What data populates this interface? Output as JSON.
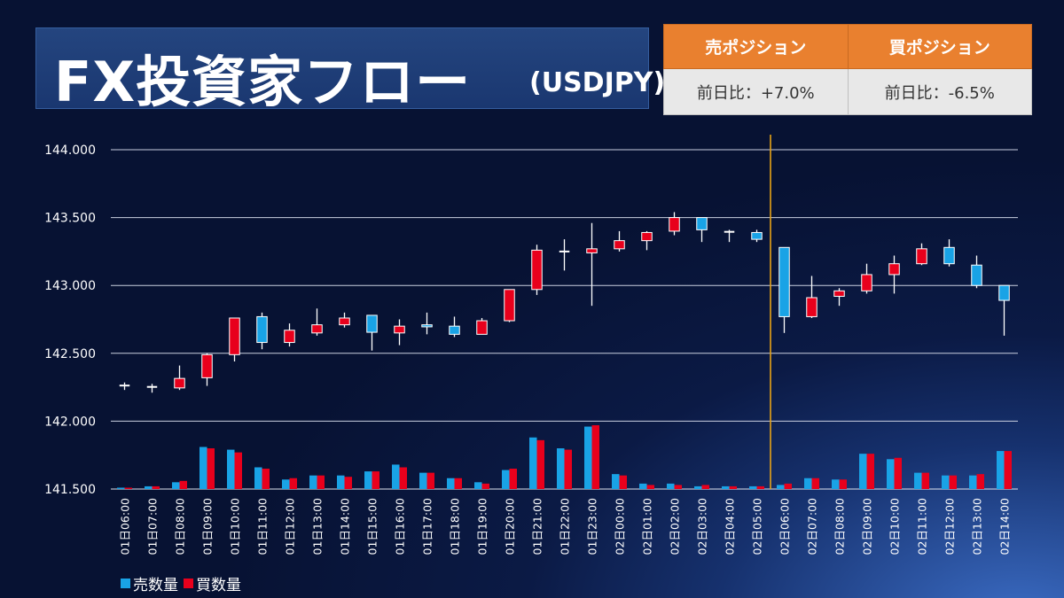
{
  "header": {
    "title": "FX投資家フロー",
    "pair": "(USDJPY)"
  },
  "positions": {
    "sell_label": "売ポジション",
    "buy_label": "買ポジション",
    "sell_change": "前日比：+7.0%",
    "buy_change": "前日比：-6.5%"
  },
  "colors": {
    "sell": "#19a3e6",
    "buy": "#e8001c",
    "divider": "#e8a317",
    "grid": "#c9cfe0"
  },
  "chart_data": {
    "type": "candlestick+bar",
    "y_ticks": [
      "144.000",
      "143.500",
      "143.000",
      "142.500",
      "142.000",
      "141.500"
    ],
    "ylim": [
      141.5,
      144.0
    ],
    "categories": [
      "01日06:00",
      "01日07:00",
      "01日08:00",
      "01日09:00",
      "01日10:00",
      "01日11:00",
      "01日12:00",
      "01日13:00",
      "01日14:00",
      "01日15:00",
      "01日16:00",
      "01日17:00",
      "01日18:00",
      "01日19:00",
      "01日20:00",
      "01日21:00",
      "01日22:00",
      "01日23:00",
      "02日00:00",
      "02日01:00",
      "02日02:00",
      "02日03:00",
      "02日04:00",
      "02日05:00",
      "02日06:00",
      "02日07:00",
      "02日08:00",
      "02日09:00",
      "02日10:00",
      "02日11:00",
      "02日12:00",
      "02日13:00",
      "02日14:00"
    ],
    "candles": [
      {
        "o": 142.265,
        "h": 142.285,
        "l": 142.23,
        "c": 142.26
      },
      {
        "o": 142.255,
        "h": 142.275,
        "l": 142.21,
        "c": 142.25
      },
      {
        "o": 142.245,
        "h": 142.41,
        "l": 142.23,
        "c": 142.315
      },
      {
        "o": 142.32,
        "h": 142.5,
        "l": 142.26,
        "c": 142.49
      },
      {
        "o": 142.49,
        "h": 142.76,
        "l": 142.44,
        "c": 142.76
      },
      {
        "o": 142.77,
        "h": 142.8,
        "l": 142.53,
        "c": 142.58
      },
      {
        "o": 142.58,
        "h": 142.72,
        "l": 142.55,
        "c": 142.67
      },
      {
        "o": 142.65,
        "h": 142.83,
        "l": 142.63,
        "c": 142.71
      },
      {
        "o": 142.71,
        "h": 142.8,
        "l": 142.69,
        "c": 142.76
      },
      {
        "o": 142.78,
        "h": 142.78,
        "l": 142.52,
        "c": 142.655
      },
      {
        "o": 142.65,
        "h": 142.75,
        "l": 142.56,
        "c": 142.7
      },
      {
        "o": 142.71,
        "h": 142.8,
        "l": 142.64,
        "c": 142.695
      },
      {
        "o": 142.7,
        "h": 142.77,
        "l": 142.62,
        "c": 142.64
      },
      {
        "o": 142.64,
        "h": 142.76,
        "l": 142.64,
        "c": 142.74
      },
      {
        "o": 142.74,
        "h": 142.97,
        "l": 142.73,
        "c": 142.97
      },
      {
        "o": 142.97,
        "h": 143.3,
        "l": 142.93,
        "c": 143.26
      },
      {
        "o": 143.255,
        "h": 143.34,
        "l": 143.11,
        "c": 143.245
      },
      {
        "o": 143.24,
        "h": 143.46,
        "l": 142.85,
        "c": 143.27
      },
      {
        "o": 143.27,
        "h": 143.4,
        "l": 143.25,
        "c": 143.33
      },
      {
        "o": 143.33,
        "h": 143.4,
        "l": 143.26,
        "c": 143.39
      },
      {
        "o": 143.4,
        "h": 143.54,
        "l": 143.37,
        "c": 143.5
      },
      {
        "o": 143.5,
        "h": 143.5,
        "l": 143.32,
        "c": 143.41
      },
      {
        "o": 143.4,
        "h": 143.41,
        "l": 143.32,
        "c": 143.39
      },
      {
        "o": 143.39,
        "h": 143.41,
        "l": 143.32,
        "c": 143.34
      },
      {
        "o": 143.28,
        "h": 143.28,
        "l": 142.65,
        "c": 142.77
      },
      {
        "o": 142.77,
        "h": 143.07,
        "l": 142.76,
        "c": 142.91
      },
      {
        "o": 142.92,
        "h": 142.98,
        "l": 142.85,
        "c": 142.96
      },
      {
        "o": 142.96,
        "h": 143.16,
        "l": 142.94,
        "c": 143.08
      },
      {
        "o": 143.08,
        "h": 143.22,
        "l": 142.94,
        "c": 143.16
      },
      {
        "o": 143.16,
        "h": 143.31,
        "l": 143.15,
        "c": 143.27
      },
      {
        "o": 143.28,
        "h": 143.34,
        "l": 143.14,
        "c": 143.16
      },
      {
        "o": 143.15,
        "h": 143.22,
        "l": 142.98,
        "c": 143.0
      },
      {
        "o": 143.0,
        "h": 143.0,
        "l": 142.63,
        "c": 142.89
      }
    ],
    "volumes_sell": [
      141.51,
      141.52,
      141.55,
      141.81,
      141.79,
      141.66,
      141.57,
      141.6,
      141.6,
      141.63,
      141.68,
      141.62,
      141.58,
      141.55,
      141.64,
      141.88,
      141.8,
      141.96,
      141.61,
      141.54,
      141.54,
      141.52,
      141.52,
      141.52,
      141.53,
      141.58,
      141.57,
      141.76,
      141.72,
      141.62,
      141.6,
      141.6,
      141.78
    ],
    "volumes_buy": [
      141.51,
      141.52,
      141.56,
      141.8,
      141.77,
      141.65,
      141.58,
      141.6,
      141.59,
      141.63,
      141.66,
      141.62,
      141.58,
      141.54,
      141.65,
      141.86,
      141.79,
      141.97,
      141.6,
      141.53,
      141.53,
      141.53,
      141.52,
      141.52,
      141.54,
      141.58,
      141.57,
      141.76,
      141.73,
      141.62,
      141.6,
      141.61,
      141.78
    ],
    "divider_after_index": 23,
    "legend": [
      "売数量",
      "買数量"
    ]
  }
}
